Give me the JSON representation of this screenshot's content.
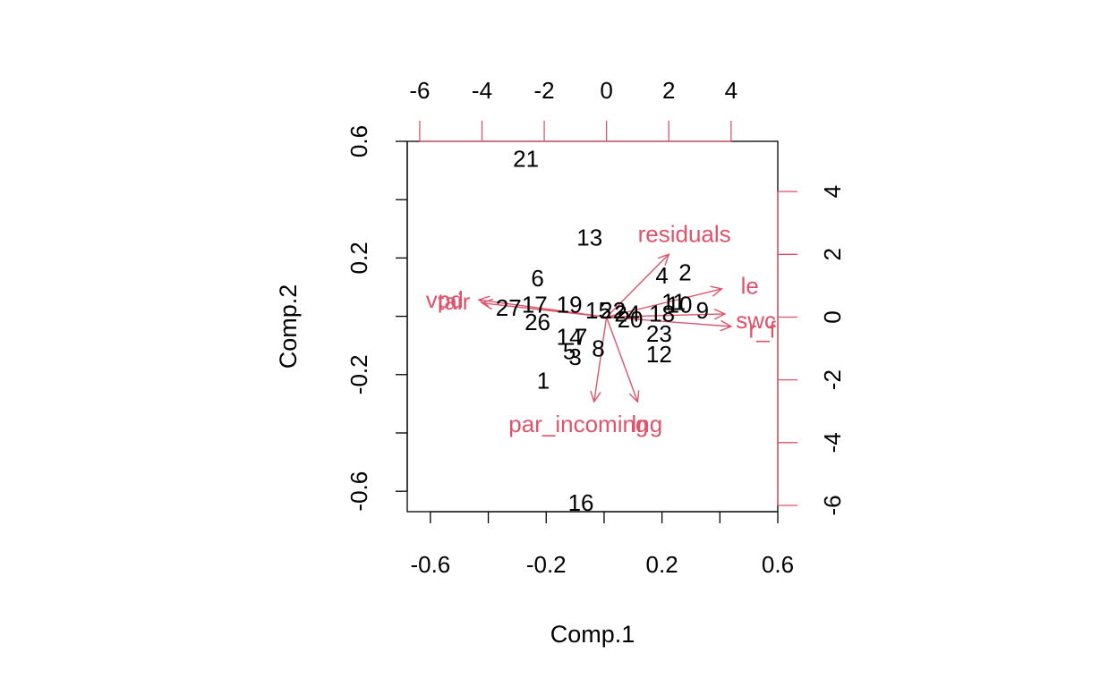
{
  "chart_data": {
    "type": "scatter",
    "subtype": "biplot",
    "xlabel": "Comp.1",
    "ylabel": "Comp.2",
    "xlim": [
      -0.68,
      0.6
    ],
    "ylim": [
      -0.67,
      0.6
    ],
    "x_ticks": [
      -0.6,
      -0.2,
      0.2,
      0.6
    ],
    "x_tick_labels": [
      "-0.6",
      "-0.2",
      "0.2",
      "0.6"
    ],
    "x_minor_ticks": [
      -0.4,
      0.0,
      0.4
    ],
    "y_ticks": [
      0.6,
      0.2,
      -0.2,
      -0.6
    ],
    "y_tick_labels": [
      "0.6",
      "0.2",
      "-0.2",
      "-0.6"
    ],
    "y_minor_ticks": [
      0.4,
      0.0,
      -0.4
    ],
    "top_axis": {
      "ticks": [
        -6,
        -4,
        -2,
        0,
        2,
        4
      ],
      "labels": [
        "-6",
        "-4",
        "-2",
        "0",
        "2",
        "4"
      ],
      "lim": [
        -6.4,
        5.5
      ]
    },
    "right_axis": {
      "ticks": [
        4,
        2,
        0,
        -2,
        -4,
        -6
      ],
      "labels": [
        "4",
        "2",
        "0",
        "-2",
        "-4",
        "-6"
      ],
      "lim": [
        -6.2,
        5.6
      ]
    },
    "grid": false,
    "points": [
      {
        "label": "21",
        "x": -0.27,
        "y": 0.54
      },
      {
        "label": "13",
        "x": -0.05,
        "y": 0.27
      },
      {
        "label": "6",
        "x": -0.23,
        "y": 0.13
      },
      {
        "label": "2",
        "x": 0.28,
        "y": 0.15
      },
      {
        "label": "4",
        "x": 0.2,
        "y": 0.14
      },
      {
        "label": "27",
        "x": -0.33,
        "y": 0.03
      },
      {
        "label": "17",
        "x": -0.24,
        "y": 0.04
      },
      {
        "label": "19",
        "x": -0.12,
        "y": 0.04
      },
      {
        "label": "15",
        "x": -0.02,
        "y": 0.02
      },
      {
        "label": "22",
        "x": 0.03,
        "y": 0.02
      },
      {
        "label": "24",
        "x": 0.08,
        "y": 0.01
      },
      {
        "label": "11",
        "x": 0.24,
        "y": 0.05
      },
      {
        "label": "10",
        "x": 0.26,
        "y": 0.04
      },
      {
        "label": "9",
        "x": 0.34,
        "y": 0.02
      },
      {
        "label": "26",
        "x": -0.23,
        "y": -0.02
      },
      {
        "label": "20",
        "x": 0.09,
        "y": -0.01
      },
      {
        "label": "18",
        "x": 0.2,
        "y": 0.01
      },
      {
        "label": "23",
        "x": 0.19,
        "y": -0.06
      },
      {
        "label": "14",
        "x": -0.12,
        "y": -0.07
      },
      {
        "label": "7",
        "x": -0.08,
        "y": -0.07
      },
      {
        "label": "8",
        "x": -0.02,
        "y": -0.11
      },
      {
        "label": "5",
        "x": -0.12,
        "y": -0.12
      },
      {
        "label": "3",
        "x": -0.1,
        "y": -0.14
      },
      {
        "label": "12",
        "x": 0.19,
        "y": -0.13
      },
      {
        "label": "1",
        "x": -0.21,
        "y": -0.22
      },
      {
        "label": "16",
        "x": -0.08,
        "y": -0.64
      }
    ],
    "loadings": [
      {
        "label": "residuals",
        "x": 2.0,
        "y": 2.0,
        "label_x": 2.5,
        "label_y": 2.65
      },
      {
        "label": "le",
        "x": 3.7,
        "y": 0.9,
        "label_x": 4.6,
        "label_y": 1.0
      },
      {
        "label": "swc",
        "x": 3.8,
        "y": 0.1,
        "label_x": 4.8,
        "label_y": -0.1
      },
      {
        "label": "r_f",
        "x": 4.0,
        "y": -0.3,
        "label_x": 5.0,
        "label_y": -0.4
      },
      {
        "label": "vpd",
        "x": -4.1,
        "y": 0.55,
        "label_x": -5.2,
        "label_y": 0.55
      },
      {
        "label": "tair",
        "x": -4.0,
        "y": 0.45,
        "label_x": -4.9,
        "label_y": 0.5
      },
      {
        "label": "par_incoming",
        "x": -0.4,
        "y": -2.7,
        "label_x": -0.9,
        "label_y": -3.4
      },
      {
        "label": "lng",
        "x": 1.0,
        "y": -2.7,
        "label_x": 1.3,
        "label_y": -3.4
      }
    ],
    "point_color": "#000000",
    "loading_color": "#DF536B"
  }
}
